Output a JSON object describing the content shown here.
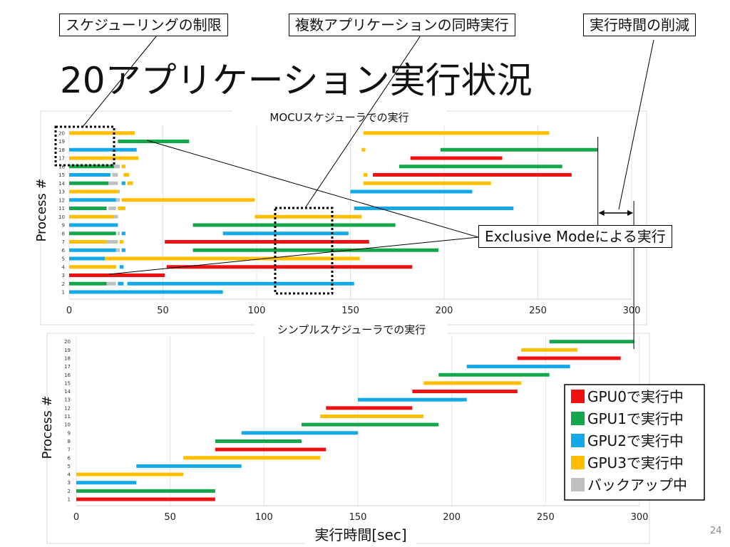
{
  "slide": {
    "title": "20アプリケーション実行状況",
    "page_number": "24",
    "callouts": {
      "scheduling": "スケジューリングの制限",
      "multi_app": "複数アプリケーションの同時実行",
      "time_reduction": "実行時間の削減",
      "exclusive": "Exclusive Modeによる実行"
    }
  },
  "colors": {
    "GPU0": "#ee1111",
    "GPU1": "#13a64b",
    "GPU2": "#12a9e6",
    "GPU3": "#ffbf00",
    "backup": "#c0c0c0"
  },
  "chart_data": [
    {
      "type": "bar",
      "subtype": "gantt",
      "title": "MOCUスケジューラでの実行",
      "xlabel": "",
      "ylabel": "Process #",
      "xlim": [
        0,
        300
      ],
      "xticks": [
        0,
        50,
        100,
        150,
        200,
        250,
        300
      ],
      "ylim": [
        1,
        20
      ],
      "grid": true,
      "annotations": [
        "Exclusive Modeによる実行"
      ],
      "processes": [
        {
          "id": 1,
          "segments": [
            {
              "start": 0,
              "end": 82,
              "gpu": "GPU2"
            }
          ]
        },
        {
          "id": 2,
          "segments": [
            {
              "start": 0,
              "end": 20,
              "gpu": "GPU1"
            },
            {
              "start": 20,
              "end": 25,
              "gpu": "backup"
            },
            {
              "start": 26,
              "end": 29,
              "gpu": "GPU2"
            },
            {
              "start": 31,
              "end": 152,
              "gpu": "GPU2"
            }
          ]
        },
        {
          "id": 3,
          "segments": [
            {
              "start": 0,
              "end": 51,
              "gpu": "GPU0"
            }
          ]
        },
        {
          "id": 4,
          "segments": [
            {
              "start": 0,
              "end": 25,
              "gpu": "GPU3"
            },
            {
              "start": 27,
              "end": 29,
              "gpu": "GPU2"
            },
            {
              "start": 52,
              "end": 183,
              "gpu": "GPU0"
            }
          ]
        },
        {
          "id": 5,
          "segments": [
            {
              "start": 0,
              "end": 19,
              "gpu": "GPU2"
            },
            {
              "start": 19,
              "end": 155,
              "gpu": "GPU3"
            }
          ]
        },
        {
          "id": 6,
          "segments": [
            {
              "start": 0,
              "end": 25,
              "gpu": "GPU2"
            },
            {
              "start": 25,
              "end": 27,
              "gpu": "backup"
            },
            {
              "start": 28,
              "end": 30,
              "gpu": "GPU2"
            },
            {
              "start": 66,
              "end": 197,
              "gpu": "GPU1"
            }
          ]
        },
        {
          "id": 7,
          "segments": [
            {
              "start": 0,
              "end": 20,
              "gpu": "GPU3"
            },
            {
              "start": 20,
              "end": 26,
              "gpu": "backup"
            },
            {
              "start": 27,
              "end": 29,
              "gpu": "GPU3"
            },
            {
              "start": 51,
              "end": 160,
              "gpu": "GPU0"
            }
          ]
        },
        {
          "id": 8,
          "segments": [
            {
              "start": 0,
              "end": 25,
              "gpu": "GPU1"
            },
            {
              "start": 26,
              "end": 27,
              "gpu": "backup"
            },
            {
              "start": 28,
              "end": 30,
              "gpu": "GPU2"
            },
            {
              "start": 82,
              "end": 149,
              "gpu": "GPU2"
            }
          ]
        },
        {
          "id": 9,
          "segments": [
            {
              "start": 0,
              "end": 26,
              "gpu": "GPU2"
            },
            {
              "start": 66,
              "end": 174,
              "gpu": "GPU1"
            }
          ]
        },
        {
          "id": 10,
          "segments": [
            {
              "start": 0,
              "end": 24,
              "gpu": "GPU3"
            },
            {
              "start": 24,
              "end": 26,
              "gpu": "backup"
            },
            {
              "start": 99,
              "end": 156,
              "gpu": "GPU3"
            }
          ]
        },
        {
          "id": 11,
          "segments": [
            {
              "start": 0,
              "end": 20,
              "gpu": "GPU1"
            },
            {
              "start": 21,
              "end": 25,
              "gpu": "backup"
            },
            {
              "start": 26,
              "end": 30,
              "gpu": "GPU3"
            },
            {
              "start": 152,
              "end": 237,
              "gpu": "GPU2"
            }
          ]
        },
        {
          "id": 12,
          "segments": [
            {
              "start": 0,
              "end": 25,
              "gpu": "GPU2"
            },
            {
              "start": 25,
              "end": 27,
              "gpu": "backup"
            },
            {
              "start": 28,
              "end": 99,
              "gpu": "GPU3"
            }
          ]
        },
        {
          "id": 13,
          "segments": [
            {
              "start": 0,
              "end": 26,
              "gpu": "GPU3"
            },
            {
              "start": 26,
              "end": 27,
              "gpu": "backup"
            },
            {
              "start": 150,
              "end": 215,
              "gpu": "GPU2"
            }
          ]
        },
        {
          "id": 14,
          "segments": [
            {
              "start": 0,
              "end": 21,
              "gpu": "GPU1"
            },
            {
              "start": 21,
              "end": 26,
              "gpu": "backup"
            },
            {
              "start": 28,
              "end": 30,
              "gpu": "GPU2"
            },
            {
              "start": 31,
              "end": 34,
              "gpu": "GPU3"
            },
            {
              "start": 157,
              "end": 225,
              "gpu": "GPU3"
            }
          ]
        },
        {
          "id": 15,
          "segments": [
            {
              "start": 0,
              "end": 22,
              "gpu": "GPU2"
            },
            {
              "start": 23,
              "end": 26,
              "gpu": "backup"
            },
            {
              "start": 29,
              "end": 32,
              "gpu": "GPU3"
            },
            {
              "start": 157,
              "end": 159,
              "gpu": "GPU3"
            },
            {
              "start": 162,
              "end": 268,
              "gpu": "GPU0"
            }
          ]
        },
        {
          "id": 16,
          "segments": [
            {
              "start": 0,
              "end": 24,
              "gpu": "GPU1"
            },
            {
              "start": 24,
              "end": 27,
              "gpu": "backup"
            },
            {
              "start": 28,
              "end": 30,
              "gpu": "GPU3"
            },
            {
              "start": 176,
              "end": 263,
              "gpu": "GPU1"
            }
          ]
        },
        {
          "id": 17,
          "segments": [
            {
              "start": 0,
              "end": 26,
              "gpu": "GPU3"
            },
            {
              "start": 26,
              "end": 37,
              "gpu": "GPU3"
            },
            {
              "start": 182,
              "end": 231,
              "gpu": "GPU0"
            }
          ]
        },
        {
          "id": 18,
          "segments": [
            {
              "start": 0,
              "end": 24,
              "gpu": "GPU2"
            },
            {
              "start": 24,
              "end": 36,
              "gpu": "GPU2"
            },
            {
              "start": 156,
              "end": 158,
              "gpu": "GPU3"
            },
            {
              "start": 198,
              "end": 282,
              "gpu": "GPU1"
            }
          ]
        },
        {
          "id": 19,
          "segments": [
            {
              "start": 26,
              "end": 64,
              "gpu": "GPU1"
            }
          ]
        },
        {
          "id": 20,
          "segments": [
            {
              "start": 0,
              "end": 25,
              "gpu": "GPU3"
            },
            {
              "start": 25,
              "end": 35,
              "gpu": "GPU3"
            },
            {
              "start": 157,
              "end": 256,
              "gpu": "GPU3"
            }
          ]
        }
      ]
    },
    {
      "type": "bar",
      "subtype": "gantt",
      "title": "シンプルスケジューラでの実行",
      "xlabel": "実行時間[sec]",
      "ylabel": "Process #",
      "xlim": [
        0,
        300
      ],
      "xticks": [
        0,
        50,
        100,
        150,
        200,
        250,
        300
      ],
      "ylim": [
        1,
        20
      ],
      "grid": true,
      "legend": {
        "placement": "right",
        "entries": [
          {
            "key": "GPU0",
            "label": "GPU0で実行中"
          },
          {
            "key": "GPU1",
            "label": "GPU1で実行中"
          },
          {
            "key": "GPU2",
            "label": "GPU2で実行中"
          },
          {
            "key": "GPU3",
            "label": "GPU3で実行中"
          },
          {
            "key": "backup",
            "label": "バックアップ中"
          }
        ]
      },
      "processes": [
        {
          "id": 1,
          "segments": [
            {
              "start": 0,
              "end": 74,
              "gpu": "GPU0"
            }
          ]
        },
        {
          "id": 2,
          "segments": [
            {
              "start": 0,
              "end": 74,
              "gpu": "GPU1"
            }
          ]
        },
        {
          "id": 3,
          "segments": [
            {
              "start": 0,
              "end": 32,
              "gpu": "GPU2"
            }
          ]
        },
        {
          "id": 4,
          "segments": [
            {
              "start": 0,
              "end": 57,
              "gpu": "GPU3"
            }
          ]
        },
        {
          "id": 5,
          "segments": [
            {
              "start": 32,
              "end": 88,
              "gpu": "GPU2"
            }
          ]
        },
        {
          "id": 6,
          "segments": [
            {
              "start": 57,
              "end": 130,
              "gpu": "GPU3"
            }
          ]
        },
        {
          "id": 7,
          "segments": [
            {
              "start": 74,
              "end": 133,
              "gpu": "GPU0"
            }
          ]
        },
        {
          "id": 8,
          "segments": [
            {
              "start": 74,
              "end": 120,
              "gpu": "GPU1"
            }
          ]
        },
        {
          "id": 9,
          "segments": [
            {
              "start": 88,
              "end": 150,
              "gpu": "GPU2"
            }
          ]
        },
        {
          "id": 10,
          "segments": [
            {
              "start": 120,
              "end": 193,
              "gpu": "GPU1"
            }
          ]
        },
        {
          "id": 11,
          "segments": [
            {
              "start": 130,
              "end": 185,
              "gpu": "GPU3"
            }
          ]
        },
        {
          "id": 12,
          "segments": [
            {
              "start": 133,
              "end": 179,
              "gpu": "GPU0"
            }
          ]
        },
        {
          "id": 13,
          "segments": [
            {
              "start": 150,
              "end": 208,
              "gpu": "GPU2"
            }
          ]
        },
        {
          "id": 14,
          "segments": [
            {
              "start": 179,
              "end": 235,
              "gpu": "GPU0"
            }
          ]
        },
        {
          "id": 15,
          "segments": [
            {
              "start": 185,
              "end": 237,
              "gpu": "GPU3"
            }
          ]
        },
        {
          "id": 16,
          "segments": [
            {
              "start": 193,
              "end": 252,
              "gpu": "GPU1"
            }
          ]
        },
        {
          "id": 17,
          "segments": [
            {
              "start": 208,
              "end": 263,
              "gpu": "GPU2"
            }
          ]
        },
        {
          "id": 18,
          "segments": [
            {
              "start": 235,
              "end": 290,
              "gpu": "GPU0"
            }
          ]
        },
        {
          "id": 19,
          "segments": [
            {
              "start": 237,
              "end": 267,
              "gpu": "GPU3"
            }
          ]
        },
        {
          "id": 20,
          "segments": [
            {
              "start": 252,
              "end": 297,
              "gpu": "GPU1"
            }
          ]
        }
      ]
    }
  ]
}
